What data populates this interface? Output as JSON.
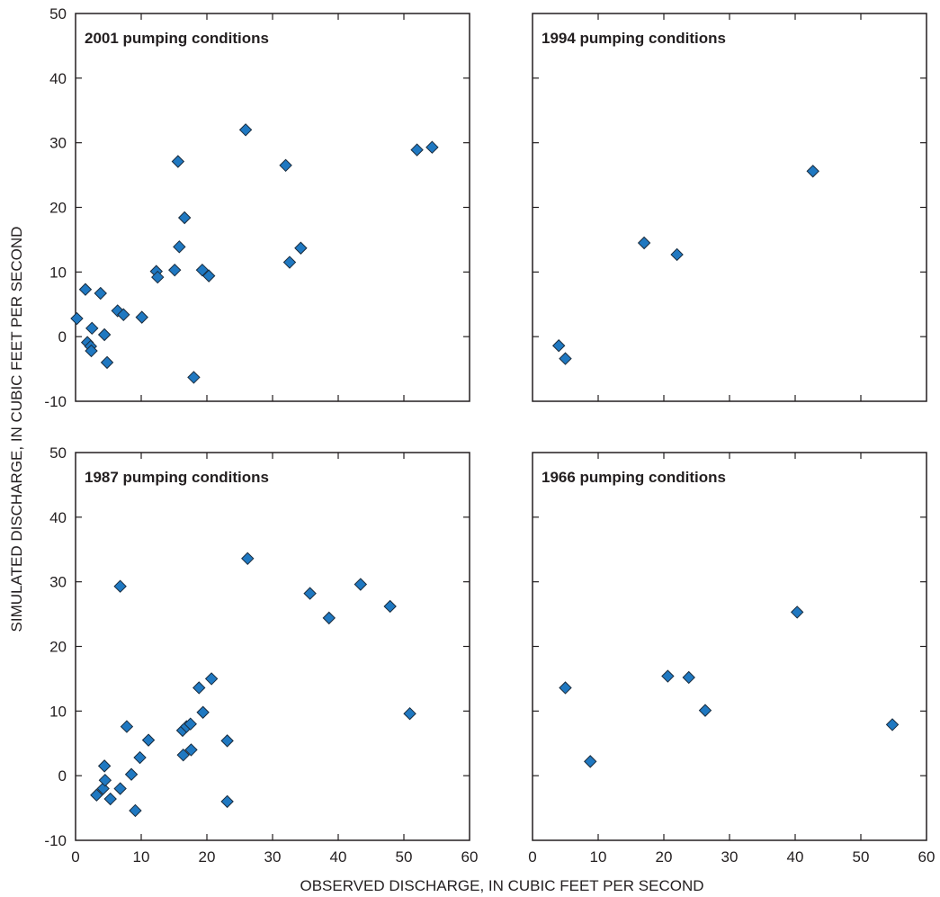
{
  "chart_data": {
    "type": "scatter",
    "xlabel": "OBSERVED DISCHARGE, IN CUBIC FEET PER SECOND",
    "ylabel": "SIMULATED DISCHARGE, IN CUBIC FEET PER SECOND",
    "xlim": [
      0,
      60
    ],
    "ylim": [
      -10,
      50
    ],
    "xticks": [
      "0",
      "10",
      "20",
      "30",
      "40",
      "50",
      "60"
    ],
    "yticks": [
      "-10",
      "0",
      "10",
      "20",
      "30",
      "40",
      "50"
    ],
    "grid": false,
    "marker_color": "#1f78c1",
    "panels": [
      {
        "title": "2001 pumping conditions",
        "points": [
          [
            0.2,
            2.8
          ],
          [
            1.5,
            7.3
          ],
          [
            1.8,
            -0.9
          ],
          [
            2.3,
            -1.5
          ],
          [
            2.4,
            -2.2
          ],
          [
            2.5,
            1.3
          ],
          [
            3.8,
            6.7
          ],
          [
            4.4,
            0.3
          ],
          [
            4.8,
            -4.0
          ],
          [
            6.4,
            4.0
          ],
          [
            7.3,
            3.4
          ],
          [
            10.1,
            3.0
          ],
          [
            12.3,
            10.1
          ],
          [
            12.5,
            9.2
          ],
          [
            15.1,
            10.3
          ],
          [
            15.6,
            27.1
          ],
          [
            15.8,
            13.9
          ],
          [
            16.6,
            18.4
          ],
          [
            18.0,
            -6.3
          ],
          [
            19.3,
            10.3
          ],
          [
            20.3,
            9.4
          ],
          [
            25.9,
            32.0
          ],
          [
            32.0,
            26.5
          ],
          [
            32.6,
            11.5
          ],
          [
            34.3,
            13.7
          ],
          [
            52.0,
            28.9
          ],
          [
            54.3,
            29.3
          ]
        ]
      },
      {
        "title": "1994 pumping conditions",
        "points": [
          [
            4.0,
            -1.4
          ],
          [
            5.0,
            -3.4
          ],
          [
            17.0,
            14.5
          ],
          [
            22.0,
            12.7
          ],
          [
            42.7,
            25.6
          ]
        ]
      },
      {
        "title": "1987 pumping conditions",
        "points": [
          [
            3.2,
            -3.0
          ],
          [
            4.2,
            -2.0
          ],
          [
            4.4,
            1.5
          ],
          [
            4.5,
            -0.7
          ],
          [
            5.3,
            -3.6
          ],
          [
            6.8,
            29.3
          ],
          [
            6.8,
            -2.0
          ],
          [
            7.8,
            7.6
          ],
          [
            8.5,
            0.2
          ],
          [
            9.1,
            -5.4
          ],
          [
            9.8,
            2.8
          ],
          [
            11.1,
            5.5
          ],
          [
            16.3,
            7.0
          ],
          [
            16.4,
            3.2
          ],
          [
            16.9,
            7.6
          ],
          [
            17.5,
            8.0
          ],
          [
            17.6,
            4.0
          ],
          [
            18.8,
            13.6
          ],
          [
            19.4,
            9.8
          ],
          [
            20.7,
            15.0
          ],
          [
            23.1,
            -4.0
          ],
          [
            23.1,
            5.4
          ],
          [
            26.2,
            33.6
          ],
          [
            35.7,
            28.2
          ],
          [
            38.6,
            24.4
          ],
          [
            43.4,
            29.6
          ],
          [
            47.9,
            26.2
          ],
          [
            50.9,
            9.6
          ]
        ]
      },
      {
        "title": "1966 pumping conditions",
        "points": [
          [
            5.0,
            13.6
          ],
          [
            8.8,
            2.2
          ],
          [
            20.6,
            15.4
          ],
          [
            23.8,
            15.2
          ],
          [
            26.3,
            10.1
          ],
          [
            40.3,
            25.3
          ],
          [
            54.8,
            7.9
          ]
        ]
      }
    ]
  }
}
